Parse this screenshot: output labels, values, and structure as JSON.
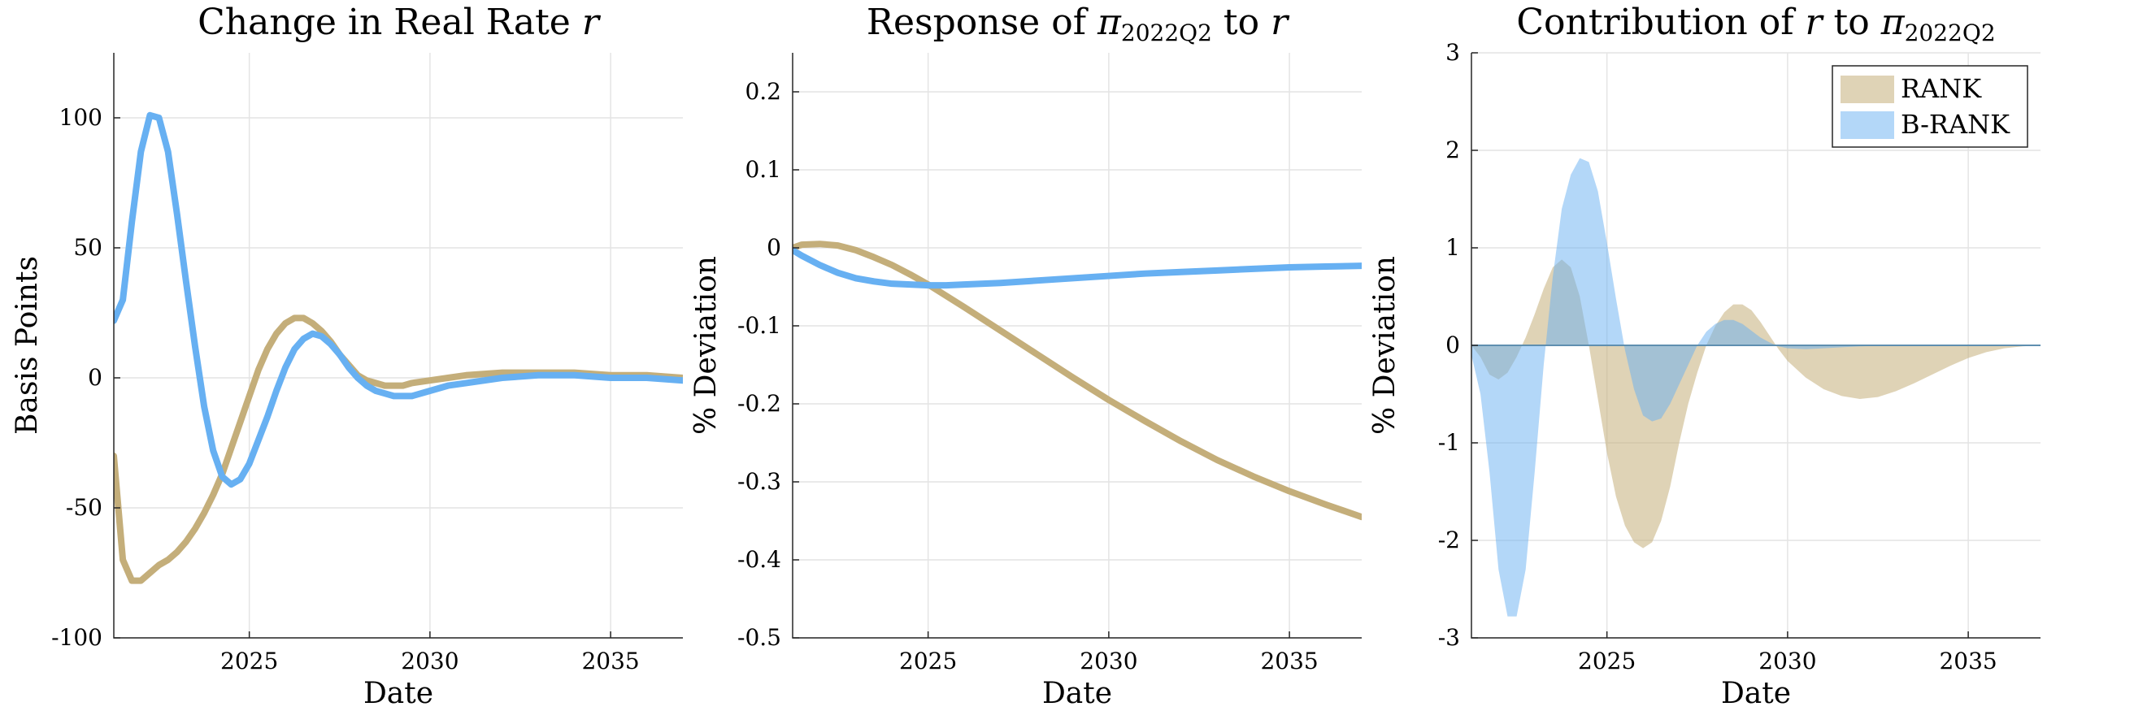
{
  "colors": {
    "rank": "#C4AE7A",
    "brank": "#67B0F2",
    "rank_fill": "#C4AE7A",
    "brank_fill": "#67B0F2"
  },
  "legend": {
    "entries": [
      "RANK",
      "B-RANK"
    ],
    "placement": "top-right"
  },
  "chart_data": [
    {
      "type": "line",
      "title": "Change in Real Rate r",
      "title_parts": [
        {
          "text": "Change in Real Rate ",
          "italic": false
        },
        {
          "text": "r",
          "italic": true
        }
      ],
      "xlabel": "Date",
      "ylabel": "Basis Points",
      "xlim": [
        2021.25,
        2037
      ],
      "ylim": [
        -100,
        125
      ],
      "xticks": [
        2025,
        2030,
        2035
      ],
      "yticks": [
        -100,
        -50,
        0,
        50,
        100
      ],
      "grid": true,
      "series": [
        {
          "key": "rank",
          "x": [
            2021.25,
            2021.5,
            2021.75,
            2022,
            2022.25,
            2022.5,
            2022.75,
            2023,
            2023.25,
            2023.5,
            2023.75,
            2024,
            2024.25,
            2024.5,
            2024.75,
            2025,
            2025.25,
            2025.5,
            2025.75,
            2026,
            2026.25,
            2026.5,
            2026.75,
            2027,
            2027.25,
            2027.5,
            2027.75,
            2028,
            2028.25,
            2028.5,
            2028.75,
            2029,
            2029.25,
            2029.5,
            2030,
            2030.5,
            2031,
            2032,
            2033,
            2034,
            2035,
            2036,
            2037
          ],
          "y": [
            -30,
            -70,
            -78,
            -78,
            -75,
            -72,
            -70,
            -67,
            -63,
            -58,
            -52,
            -45,
            -37,
            -27,
            -17,
            -7,
            3,
            11,
            17,
            21,
            23,
            23,
            21,
            18,
            14,
            9,
            5,
            1,
            -1,
            -2,
            -3,
            -3,
            -3,
            -2,
            -1,
            0,
            1,
            2,
            2,
            2,
            1,
            1,
            0
          ]
        },
        {
          "key": "brank",
          "x": [
            2021.25,
            2021.5,
            2021.75,
            2022,
            2022.25,
            2022.5,
            2022.75,
            2023,
            2023.25,
            2023.5,
            2023.75,
            2024,
            2024.25,
            2024.5,
            2024.75,
            2025,
            2025.25,
            2025.5,
            2025.75,
            2026,
            2026.25,
            2026.5,
            2026.75,
            2027,
            2027.25,
            2027.5,
            2027.75,
            2028,
            2028.25,
            2028.5,
            2028.75,
            2029,
            2029.25,
            2029.5,
            2030,
            2030.5,
            2031,
            2032,
            2033,
            2034,
            2035,
            2036,
            2037
          ],
          "y": [
            22,
            30,
            60,
            87,
            101,
            100,
            87,
            63,
            37,
            12,
            -11,
            -28,
            -38,
            -41,
            -39,
            -33,
            -24,
            -15,
            -5,
            4,
            11,
            15,
            17,
            16,
            13,
            9,
            4,
            0,
            -3,
            -5,
            -6,
            -7,
            -7,
            -7,
            -5,
            -3,
            -2,
            0,
            1,
            1,
            0,
            0,
            -1
          ]
        }
      ]
    },
    {
      "type": "line",
      "title": "Response of π2022Q2 to r",
      "title_parts": [
        {
          "text": "Response of ",
          "italic": false
        },
        {
          "text": "π",
          "italic": true
        },
        {
          "text": "2022Q2",
          "italic": false,
          "sub": true
        },
        {
          "text": " to ",
          "italic": false
        },
        {
          "text": "r",
          "italic": true
        }
      ],
      "xlabel": "Date",
      "ylabel": "% Deviation",
      "xlim": [
        2021.25,
        2037
      ],
      "ylim": [
        -0.5,
        0.25
      ],
      "xticks": [
        2025,
        2030,
        2035
      ],
      "yticks": [
        -0.5,
        -0.4,
        -0.3,
        -0.2,
        -0.1,
        0,
        0.1,
        0.2
      ],
      "ytick_labels": [
        "-0.5",
        "-0.4",
        "-0.3",
        "-0.2",
        "-0.1",
        "0",
        "0.1",
        "0.2"
      ],
      "grid": true,
      "series": [
        {
          "key": "rank",
          "x": [
            2021.25,
            2021.5,
            2022,
            2022.5,
            2023,
            2023.5,
            2024,
            2024.5,
            2025,
            2026,
            2027,
            2028,
            2029,
            2030,
            2031,
            2032,
            2033,
            2034,
            2035,
            2036,
            2037
          ],
          "y": [
            0.0,
            0.004,
            0.005,
            0.003,
            -0.003,
            -0.012,
            -0.022,
            -0.034,
            -0.047,
            -0.076,
            -0.106,
            -0.136,
            -0.166,
            -0.195,
            -0.222,
            -0.248,
            -0.272,
            -0.293,
            -0.312,
            -0.329,
            -0.345
          ]
        },
        {
          "key": "brank",
          "x": [
            2021.25,
            2021.5,
            2022,
            2022.5,
            2023,
            2023.5,
            2024,
            2024.5,
            2025,
            2025.5,
            2026,
            2027,
            2028,
            2029,
            2030,
            2031,
            2032,
            2033,
            2034,
            2035,
            2036,
            2037
          ],
          "y": [
            -0.003,
            -0.01,
            -0.022,
            -0.032,
            -0.039,
            -0.043,
            -0.046,
            -0.047,
            -0.048,
            -0.048,
            -0.047,
            -0.045,
            -0.042,
            -0.039,
            -0.036,
            -0.033,
            -0.031,
            -0.029,
            -0.027,
            -0.025,
            -0.024,
            -0.023
          ]
        }
      ]
    },
    {
      "type": "area",
      "title": "Contribution of r to π2022Q2",
      "title_parts": [
        {
          "text": "Contribution of ",
          "italic": false
        },
        {
          "text": "r",
          "italic": true
        },
        {
          "text": " to ",
          "italic": false
        },
        {
          "text": "π",
          "italic": true
        },
        {
          "text": "2022Q2",
          "italic": false,
          "sub": true
        }
      ],
      "xlabel": "Date",
      "ylabel": "% Deviation",
      "xlim": [
        2021.25,
        2037
      ],
      "ylim": [
        -3,
        3
      ],
      "xticks": [
        2025,
        2030,
        2035
      ],
      "yticks": [
        -3,
        -2,
        -1,
        0,
        1,
        2,
        3
      ],
      "grid": true,
      "legend": [
        "RANK",
        "B-RANK"
      ],
      "series": [
        {
          "key": "rank",
          "name": "RANK",
          "x": [
            2021.25,
            2021.5,
            2021.75,
            2022,
            2022.25,
            2022.5,
            2022.75,
            2023,
            2023.25,
            2023.5,
            2023.75,
            2024,
            2024.25,
            2024.5,
            2024.75,
            2025,
            2025.25,
            2025.5,
            2025.75,
            2026,
            2026.25,
            2026.5,
            2026.75,
            2027,
            2027.25,
            2027.5,
            2027.75,
            2028,
            2028.25,
            2028.5,
            2028.75,
            2029,
            2029.25,
            2029.5,
            2029.75,
            2030,
            2030.5,
            2031,
            2031.5,
            2032,
            2032.5,
            2033,
            2033.5,
            2034,
            2034.5,
            2035,
            2035.5,
            2036,
            2036.5,
            2037
          ],
          "y": [
            0,
            -0.12,
            -0.3,
            -0.35,
            -0.28,
            -0.12,
            0.08,
            0.32,
            0.58,
            0.8,
            0.88,
            0.8,
            0.5,
            0.0,
            -0.55,
            -1.1,
            -1.55,
            -1.85,
            -2.02,
            -2.08,
            -2.02,
            -1.8,
            -1.45,
            -1.0,
            -0.6,
            -0.28,
            0.0,
            0.2,
            0.34,
            0.42,
            0.42,
            0.36,
            0.24,
            0.1,
            -0.04,
            -0.16,
            -0.33,
            -0.45,
            -0.52,
            -0.55,
            -0.53,
            -0.47,
            -0.39,
            -0.3,
            -0.21,
            -0.13,
            -0.07,
            -0.03,
            -0.01,
            0
          ]
        },
        {
          "key": "brank",
          "name": "B-RANK",
          "x": [
            2021.25,
            2021.5,
            2021.75,
            2022,
            2022.25,
            2022.5,
            2022.75,
            2023,
            2023.25,
            2023.5,
            2023.75,
            2024,
            2024.25,
            2024.5,
            2024.75,
            2025,
            2025.25,
            2025.5,
            2025.75,
            2026,
            2026.25,
            2026.5,
            2026.75,
            2027,
            2027.25,
            2027.5,
            2027.75,
            2028,
            2028.25,
            2028.5,
            2028.75,
            2029,
            2029.25,
            2029.5,
            2029.75,
            2030,
            2030.5,
            2031,
            2031.5,
            2032,
            2033,
            2034,
            2035,
            2036,
            2037
          ],
          "y": [
            -0.1,
            -0.5,
            -1.3,
            -2.3,
            -2.78,
            -2.78,
            -2.3,
            -1.3,
            -0.2,
            0.7,
            1.4,
            1.75,
            1.92,
            1.88,
            1.58,
            1.05,
            0.48,
            -0.05,
            -0.45,
            -0.72,
            -0.78,
            -0.75,
            -0.6,
            -0.4,
            -0.2,
            0.0,
            0.14,
            0.22,
            0.26,
            0.26,
            0.22,
            0.15,
            0.08,
            0.03,
            -0.01,
            -0.03,
            -0.04,
            -0.03,
            -0.02,
            -0.01,
            0,
            0,
            0,
            0,
            0
          ]
        }
      ]
    }
  ]
}
